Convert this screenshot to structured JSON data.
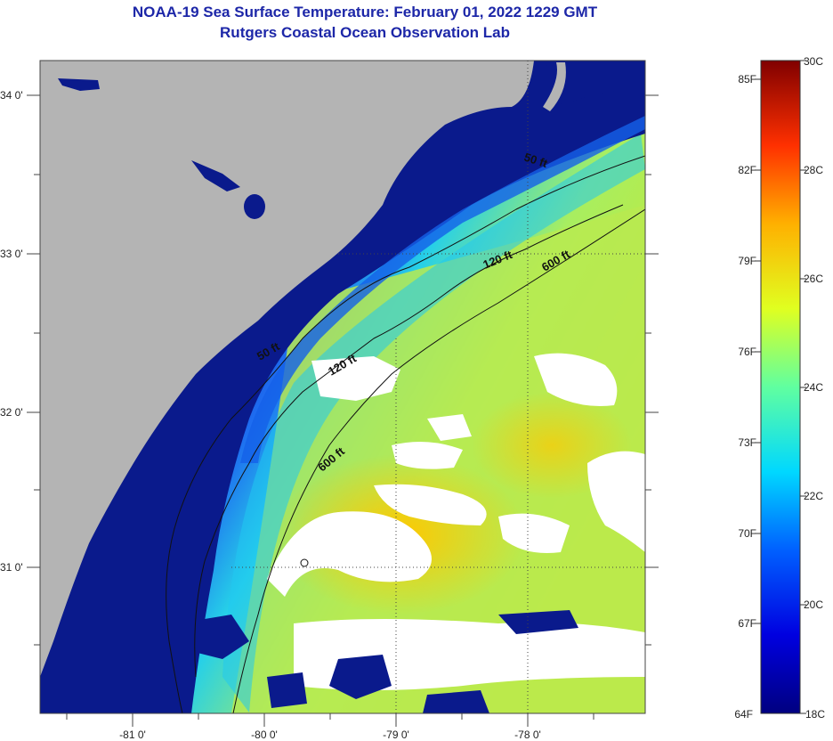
{
  "header": {
    "title": "NOAA-19 Sea Surface Temperature:  February 01, 2022 1229 GMT",
    "subtitle": "Rutgers Coastal Ocean Observation Lab"
  },
  "axes": {
    "x_ticks": [
      "-81 0'",
      "-80 0'",
      "-79 0'",
      "-78 0'"
    ],
    "y_ticks": [
      "34 0'",
      "33 0'",
      "32 0'",
      "31 0'"
    ]
  },
  "contours": {
    "labels": [
      "50 ft",
      "120 ft",
      "600 ft",
      "50 ft",
      "120 ft",
      "600 ft"
    ]
  },
  "colorbar": {
    "fahrenheit": [
      "85F",
      "82F",
      "79F",
      "76F",
      "73F",
      "70F",
      "67F",
      "64F"
    ],
    "celsius": [
      "30C",
      "28C",
      "26C",
      "24C",
      "22C",
      "20C",
      "18C"
    ]
  },
  "colors": {
    "title": "#1d27a8",
    "land": "#b4b4b4",
    "cold_water": "#0a1a8c",
    "cloud": "#ffffff"
  }
}
